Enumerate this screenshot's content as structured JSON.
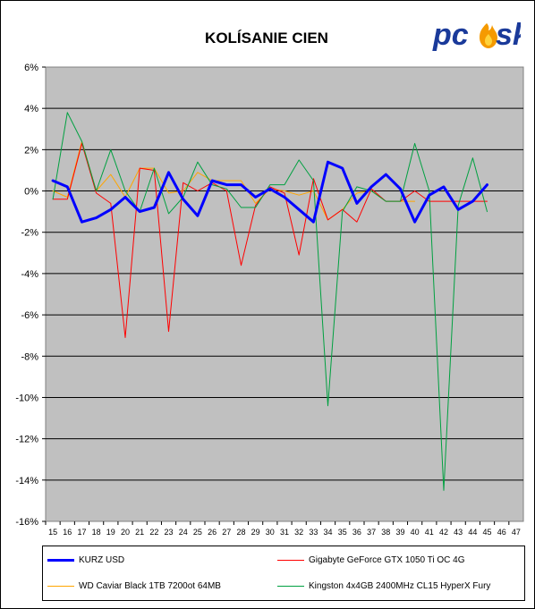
{
  "chart_data": {
    "type": "line",
    "title": "KOLÍSANIE CIEN",
    "xlabel": "",
    "ylabel": "",
    "ylim": [
      -16,
      6
    ],
    "yticks": [
      6,
      4,
      2,
      0,
      -2,
      -4,
      -6,
      -8,
      -10,
      -12,
      -14,
      -16
    ],
    "ytick_suffix": "%",
    "x": [
      15,
      16,
      17,
      18,
      19,
      20,
      21,
      22,
      23,
      24,
      25,
      26,
      27,
      28,
      29,
      30,
      31,
      32,
      33,
      34,
      35,
      36,
      37,
      38,
      39,
      40,
      41,
      42,
      43,
      44,
      45,
      46,
      47
    ],
    "grid": "horizontal",
    "plot_background": "#c0c0c0",
    "legend_position": "bottom",
    "series": [
      {
        "name": "KURZ USD",
        "color": "#0000ff",
        "width": 3,
        "values": [
          0.5,
          0.2,
          -1.5,
          -1.3,
          -0.9,
          -0.3,
          -1.0,
          -0.8,
          0.9,
          -0.4,
          -1.2,
          0.5,
          0.3,
          0.3,
          -0.3,
          0.1,
          -0.3,
          -0.9,
          -1.5,
          1.4,
          1.1,
          -0.6,
          0.2,
          0.8,
          0.1,
          -1.5,
          -0.2,
          0.2,
          -0.9,
          -0.5,
          0.3,
          null,
          null
        ]
      },
      {
        "name": "Gigabyte GeForce GTX 1050 Ti OC 4G",
        "color": "#ff0000",
        "width": 1,
        "values": [
          -0.4,
          -0.4,
          2.3,
          -0.1,
          -0.6,
          -7.1,
          1.1,
          1.0,
          -6.8,
          0.4,
          0.0,
          0.4,
          0.0,
          -3.6,
          -0.7,
          0.2,
          -0.1,
          -3.1,
          0.6,
          -1.4,
          -0.9,
          -1.5,
          0.1,
          -0.5,
          -0.5,
          0.0,
          -0.5,
          -0.5,
          -0.5,
          -0.5,
          -0.5,
          null,
          null
        ]
      },
      {
        "name": "WD Caviar Black 1TB 7200ot 64MB",
        "color": "#ffa500",
        "width": 1,
        "values": [
          0.0,
          -0.3,
          2.4,
          0.0,
          0.8,
          -0.3,
          1.1,
          1.1,
          -0.1,
          0.0,
          0.9,
          0.5,
          0.5,
          0.5,
          -0.6,
          0.1,
          0.0,
          -0.2,
          0.0,
          -1.4,
          -0.9,
          -0.1,
          0.0,
          -0.5,
          -0.5,
          -0.5,
          null,
          null,
          null,
          null,
          null,
          null,
          null
        ]
      },
      {
        "name": "Kingston 4x4GB 2400MHz CL15 HyperX Fury",
        "color": "#00a040",
        "width": 1,
        "values": [
          -0.4,
          3.8,
          2.4,
          0.0,
          2.0,
          0.0,
          -1.0,
          1.1,
          -1.1,
          -0.3,
          1.4,
          0.3,
          0.1,
          -0.8,
          -0.8,
          0.3,
          0.3,
          1.5,
          0.5,
          -10.4,
          -1.0,
          0.2,
          0.0,
          -0.5,
          -0.5,
          2.3,
          0.0,
          -14.5,
          -0.7,
          1.6,
          -1.0,
          null,
          null
        ]
      }
    ]
  },
  "logo": {
    "text": "pcesk",
    "prefix": "pc",
    "suffix": "sk"
  }
}
